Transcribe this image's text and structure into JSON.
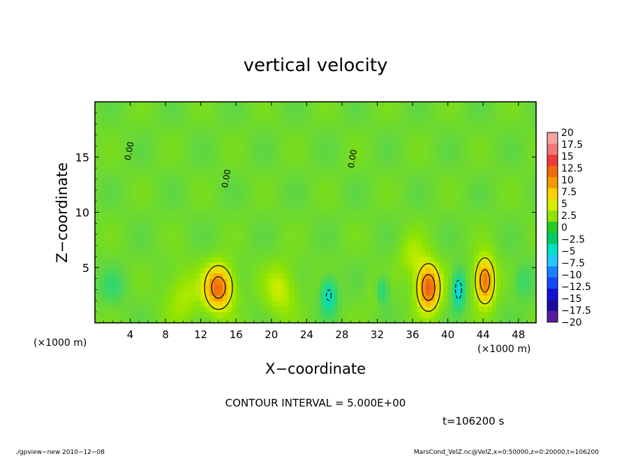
{
  "chart_data": {
    "type": "heatmap",
    "title": "vertical velocity",
    "xlabel": "X−coordinate",
    "ylabel": "Z−coordinate",
    "x_unit_label": "(×1000 m)",
    "x_unit_label_right": "(×1000 m)",
    "xlim": [
      0,
      50
    ],
    "ylim": [
      0,
      20
    ],
    "x_ticks": [
      4,
      8,
      12,
      16,
      20,
      24,
      28,
      32,
      36,
      40,
      44,
      48
    ],
    "y_ticks": [
      5,
      10,
      15
    ],
    "contour_label": "0.00",
    "contour_interval_text": "CONTOUR INTERVAL = 5.000E+00",
    "time_text": "t=106200 s",
    "background_value": 0.5,
    "features": [
      {
        "x": 14.0,
        "z": 3.2,
        "peak": 12.0,
        "sx": 1.6,
        "sz": 2.0
      },
      {
        "x": 21.0,
        "z": 3.0,
        "peak": 4.0,
        "sx": 1.8,
        "sz": 2.3
      },
      {
        "x": 26.5,
        "z": 2.5,
        "peak": -6.0,
        "sx": 0.9,
        "sz": 1.6
      },
      {
        "x": 32.0,
        "z": 2.8,
        "peak": 2.0,
        "sx": 1.0,
        "sz": 1.8
      },
      {
        "x": 32.5,
        "z": 3.0,
        "peak": -5.0,
        "sx": 0.8,
        "sz": 1.4
      },
      {
        "x": 37.8,
        "z": 3.2,
        "peak": 13.0,
        "sx": 1.3,
        "sz": 2.1
      },
      {
        "x": 41.2,
        "z": 3.0,
        "peak": -7.0,
        "sx": 0.7,
        "sz": 1.7
      },
      {
        "x": 44.2,
        "z": 3.8,
        "peak": 12.0,
        "sx": 1.1,
        "sz": 2.1
      },
      {
        "x": 2.0,
        "z": 3.2,
        "peak": -2.0,
        "sx": 1.6,
        "sz": 1.6
      },
      {
        "x": 48.5,
        "z": 3.8,
        "peak": -2.5,
        "sx": 1.2,
        "sz": 1.6
      },
      {
        "x": 10.0,
        "z": 2.5,
        "peak": 3.0,
        "sx": 2.0,
        "sz": 2.5
      },
      {
        "x": 36.0,
        "z": 6.0,
        "peak": 3.0,
        "sx": 1.5,
        "sz": 2.0
      }
    ],
    "colorbar": {
      "labels": [
        "20",
        "17.5",
        "15",
        "12.5",
        "10",
        "7.5",
        "5",
        "2.5",
        "0",
        "−2.5",
        "−5",
        "−7.5",
        "−10",
        "−12.5",
        "−15",
        "−17.5",
        "−20"
      ],
      "colors": [
        "#f6a3a3",
        "#f27878",
        "#ee3b3b",
        "#f06a0e",
        "#f59a00",
        "#fbd000",
        "#d8ee00",
        "#8fe400",
        "#22cc22",
        "#00cc66",
        "#00e0c8",
        "#22c8ff",
        "#1a80ff",
        "#1448ff",
        "#1010d8",
        "#1a0aa0",
        "#5a1aa0"
      ]
    }
  },
  "footer": {
    "left": "./gpview−new   2010−12−08",
    "right": "MarsCond_VelZ.nc@VelZ,x=0:50000,z=0:20000,t=106200"
  }
}
